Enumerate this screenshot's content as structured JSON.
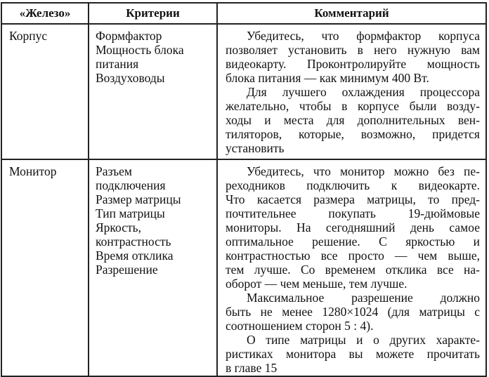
{
  "headers": [
    "«Железо»",
    "Критерии",
    "Комментарий"
  ],
  "rows": [
    {
      "item": "Корпус",
      "criteria": [
        "Формфактор",
        "Мощность блока",
        "питания",
        "Воздуховоды"
      ],
      "comment": [
        {
          "text": "Убедитесь, что формфактор корпуса",
          "indent": true,
          "justify": true
        },
        {
          "text": "позволяет установить в него нужную вам",
          "justify": true
        },
        {
          "text": "видеокарту. Проконтролируйте мощность",
          "justify": true
        },
        {
          "text": "блока питания — как минимум 400 Вт.",
          "justify": false
        },
        {
          "text": "Для лучшего охлаждения процессора",
          "indent": true,
          "justify": true
        },
        {
          "text": "желательно, чтобы в корпусе были возду-",
          "justify": true
        },
        {
          "text": "ходы и места для дополнительных вен-",
          "justify": true
        },
        {
          "text": "тиляторов, которые, возможно, придется",
          "justify": true
        },
        {
          "text": "установить",
          "justify": false
        }
      ]
    },
    {
      "item": "Монитор",
      "criteria": [
        "Разъем",
        "подключения",
        "Размер матрицы",
        "Тип матрицы",
        "Яркость,",
        "контрастность",
        "Время отклика",
        "Разрешение"
      ],
      "comment": [
        {
          "text": "Убедитесь, что монитор можно без пе-",
          "indent": true,
          "justify": true
        },
        {
          "text": "реходников подключить к видеокарте.",
          "justify": true
        },
        {
          "text": "Что касается размера матрицы, то пред-",
          "justify": true
        },
        {
          "text": "почтительнее покупать 19-дюймовые",
          "justify": true
        },
        {
          "text": "мониторы. На сегодняшний день самое",
          "justify": true
        },
        {
          "text": "оптимальное решение. С яркостью и",
          "justify": true
        },
        {
          "text": "контрастностью все просто — чем выше,",
          "justify": true
        },
        {
          "text": "тем лучше. Со временем отклика все на-",
          "justify": true
        },
        {
          "text": "оборот — чем меньше, тем лучше.",
          "justify": false
        },
        {
          "text": "Максимальное разрешение должно",
          "indent": true,
          "justify": true
        },
        {
          "text": "быть не менее 1280×1024 (для матрицы с",
          "justify": true
        },
        {
          "text": "соотношением сторон 5 : 4).",
          "justify": false
        },
        {
          "text": "О типе матрицы и о других характе-",
          "indent": true,
          "justify": true
        },
        {
          "text": "ристиках монитора вы можете прочитать",
          "justify": true
        },
        {
          "text": "в главе 15",
          "justify": false
        }
      ]
    }
  ]
}
